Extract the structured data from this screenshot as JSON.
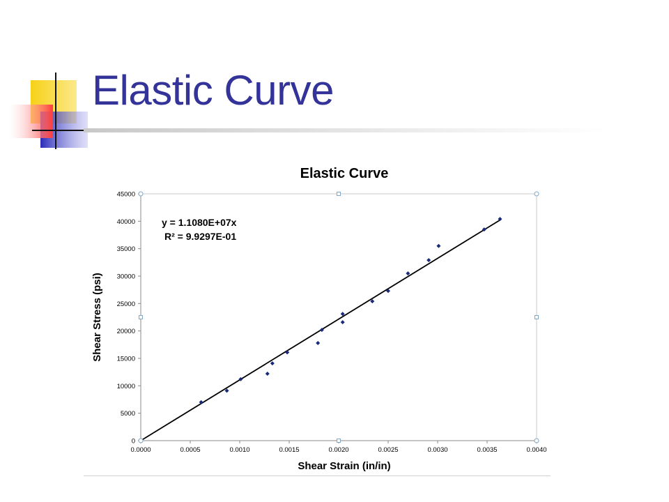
{
  "slide": {
    "title": "Elastic Curve"
  },
  "colors": {
    "title": "#333399",
    "deco_yellow": "#f7d117",
    "deco_blue": "#3333cc",
    "deco_red": "#ff4040",
    "points": "#1a2a7a",
    "trendline": "#000000"
  },
  "chart_data": {
    "type": "scatter",
    "title": "Elastic Curve",
    "xlabel": "Shear Strain (in/in)",
    "ylabel": "Shear Stress (psi)",
    "xlim": [
      0,
      0.004
    ],
    "ylim": [
      0,
      45000
    ],
    "x_ticks": [
      "0.0000",
      "0.0005",
      "0.0010",
      "0.0015",
      "0.0020",
      "0.0025",
      "0.0030",
      "0.0035",
      "0.0040"
    ],
    "y_ticks": [
      "0",
      "5000",
      "10000",
      "15000",
      "20000",
      "25000",
      "30000",
      "35000",
      "40000",
      "45000"
    ],
    "grid": false,
    "series": [
      {
        "points": [
          [
            0.00061,
            7000
          ],
          [
            0.00087,
            9100
          ],
          [
            0.00101,
            11200
          ],
          [
            0.00128,
            12200
          ],
          [
            0.00133,
            14100
          ],
          [
            0.00148,
            16100
          ],
          [
            0.00179,
            17800
          ],
          [
            0.00183,
            20200
          ],
          [
            0.00204,
            21600
          ],
          [
            0.00204,
            23100
          ],
          [
            0.00234,
            25400
          ],
          [
            0.0025,
            27300
          ],
          [
            0.0027,
            30500
          ],
          [
            0.00291,
            32900
          ],
          [
            0.00301,
            35500
          ],
          [
            0.00347,
            38500
          ],
          [
            0.00363,
            40400
          ]
        ]
      }
    ],
    "trendline": {
      "slope": 11080000,
      "intercept": 0,
      "x_range": [
        0,
        0.00364
      ],
      "equation": "y = 1.1080E+07x",
      "r_squared": "R² = 9.9297E-01"
    }
  }
}
